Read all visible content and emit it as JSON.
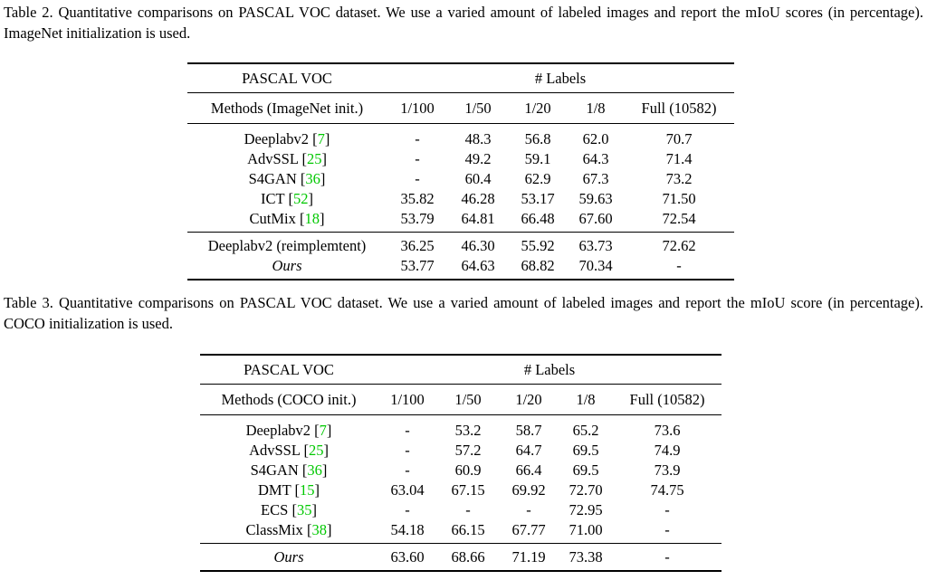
{
  "table2": {
    "caption": "Table 2.  Quantitative comparisons on PASCAL VOC dataset.  We use a varied amount of labeled images and report the mIoU scores (in percentage). ImageNet initialization is used.",
    "dataset_header": "PASCAL VOC",
    "labels_header": "# Labels",
    "methods_header": "Methods (ImageNet init.)",
    "columns": [
      "1/100",
      "1/50",
      "1/20",
      "1/8",
      "Full (10582)"
    ],
    "group1": [
      {
        "method": "Deeplabv2",
        "ref": "7",
        "values": [
          "-",
          "48.3",
          "56.8",
          "62.0",
          "70.7"
        ]
      },
      {
        "method": "AdvSSL",
        "ref": "25",
        "values": [
          "-",
          "49.2",
          "59.1",
          "64.3",
          "71.4"
        ]
      },
      {
        "method": "S4GAN",
        "ref": "36",
        "values": [
          "-",
          "60.4",
          "62.9",
          "67.3",
          "73.2"
        ]
      },
      {
        "method": "ICT",
        "ref": "52",
        "values": [
          "35.82",
          "46.28",
          "53.17",
          "59.63",
          "71.50"
        ]
      },
      {
        "method": "CutMix",
        "ref": "18",
        "values": [
          "53.79",
          "64.81",
          "66.48",
          "67.60",
          "72.54"
        ]
      }
    ],
    "group2": [
      {
        "method": "Deeplabv2 (reimplemtent)",
        "values": [
          "36.25",
          "46.30",
          "55.92",
          "63.73",
          "72.62"
        ]
      },
      {
        "method": "Ours",
        "values": [
          "53.77",
          "64.63",
          "68.82",
          "70.34",
          "-"
        ]
      }
    ]
  },
  "table3": {
    "caption": "Table 3.  Quantitative comparisons on PASCAL VOC dataset.  We use a varied amount of labeled images and report the mIoU score (in percentage). COCO initialization is used.",
    "dataset_header": "PASCAL VOC",
    "labels_header": "# Labels",
    "methods_header": "Methods (COCO init.)",
    "columns": [
      "1/100",
      "1/50",
      "1/20",
      "1/8",
      "Full (10582)"
    ],
    "group1": [
      {
        "method": "Deeplabv2",
        "ref": "7",
        "values": [
          "-",
          "53.2",
          "58.7",
          "65.2",
          "73.6"
        ]
      },
      {
        "method": "AdvSSL",
        "ref": "25",
        "values": [
          "-",
          "57.2",
          "64.7",
          "69.5",
          "74.9"
        ]
      },
      {
        "method": "S4GAN",
        "ref": "36",
        "values": [
          "-",
          "60.9",
          "66.4",
          "69.5",
          "73.9"
        ]
      },
      {
        "method": "DMT",
        "ref": "15",
        "values": [
          "63.04",
          "67.15",
          "69.92",
          "72.70",
          "74.75"
        ]
      },
      {
        "method": "ECS",
        "ref": "35",
        "values": [
          "-",
          "-",
          "-",
          "72.95",
          "-"
        ]
      },
      {
        "method": "ClassMix",
        "ref": "38",
        "values": [
          "54.18",
          "66.15",
          "67.77",
          "71.00",
          "-"
        ]
      }
    ],
    "group2": [
      {
        "method": "Ours",
        "values": [
          "63.60",
          "68.66",
          "71.19",
          "73.38",
          "-"
        ]
      }
    ]
  },
  "colors": {
    "citation": "#00c800",
    "text": "#000000",
    "background": "#ffffff"
  }
}
